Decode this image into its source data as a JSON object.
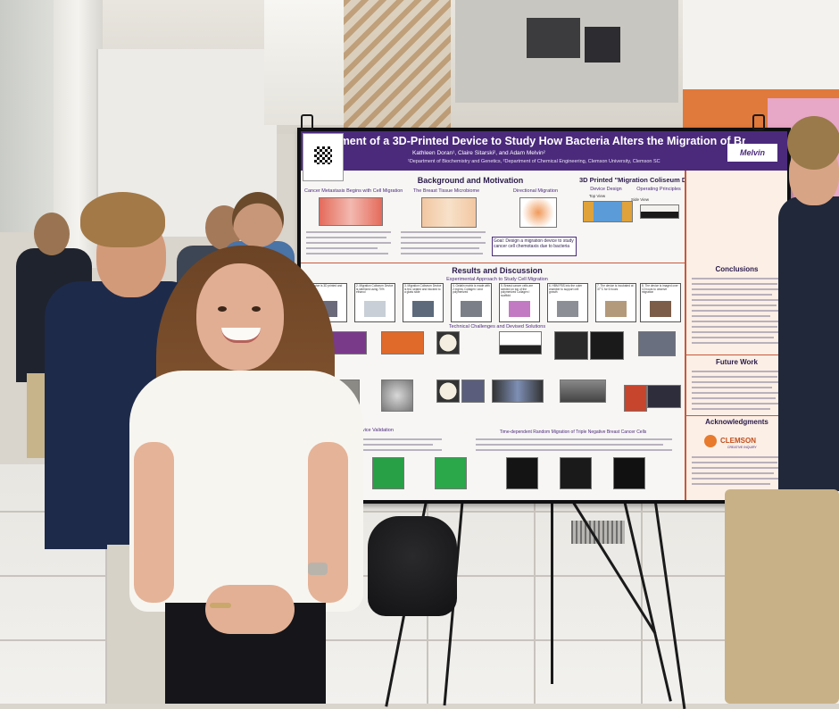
{
  "poster": {
    "title": "elopment of a 3D-Printed Device to Study How Bacteria Alters the Migration of Breast Cancer Cells",
    "authors": "Kathleen Doran¹, Claire Sitarski², and Adam Melvin²",
    "affiliation": "¹Department of Biochemistry and Genetics, ²Department of Chemical Engineering, Clemson University, Clemson SC",
    "logo_text": "Melvin",
    "sections": {
      "background": "Background and Motivation",
      "background_sub1": "Cancer Metastasis Begins with Cell Migration",
      "background_sub2": "The Breast Tissue Microbiome",
      "background_sub3": "Directional Migration",
      "device": "3D Printed \"Migration Coliseum Device\"",
      "device_sub1": "Device Design",
      "device_sub2": "Operating Principles",
      "device_view1": "Top View",
      "device_view2": "Side View",
      "results": "Results and Discussion",
      "results_sub1": "Experimental Approach to Study Cell Migration",
      "results_sub2": "Technical Challenges and Devised Solutions",
      "results_sub3": "Transfer Device Validation",
      "results_sub4": "Time-dependent Random Migration of Triple Negative Breast Cancer Cells",
      "conclusions": "Conclusions",
      "future": "Future Work",
      "acknowledgments": "Acknowledgments"
    },
    "goal": "Goal: Design a migration device to study cancer cell chemotaxis due to bacteria",
    "steps": [
      "1. Device is 3D printed and PLA",
      "2. Migration Coliseum Device is sterilized using 70% ethanol",
      "3. Migration Coliseum Device is fed, seated and blocked to a glass slide",
      "4. Gelatin matrix is made with 2 mg/mL Collagen I and polymerized",
      "5. Breast cancer cells are seeded on top of the polymerized Collagen I scaffold",
      "6. HBM FBS into the outer chamber to support cell growth",
      "7. The device is incubated at 37°C for 6 hours",
      "8. The device is imaged over 10 hours to observe migration"
    ],
    "clemson": "CLEMSON",
    "clemson_sub": "CREATIVE INQUIRY",
    "qr_caption": ""
  }
}
